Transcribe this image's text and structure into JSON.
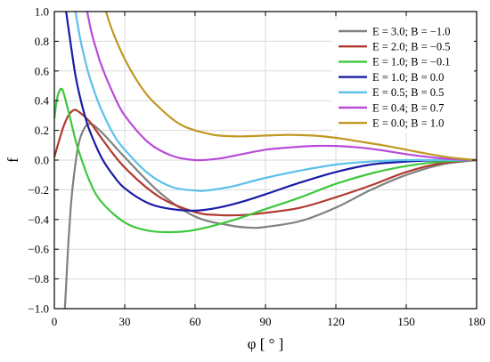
{
  "chart_data": {
    "type": "line",
    "title": "",
    "xlabel": "φ [ ° ]",
    "ylabel": "f",
    "xlim": [
      0,
      180
    ],
    "ylim": [
      -1.0,
      1.0
    ],
    "xticks": [
      0,
      30,
      60,
      90,
      120,
      150,
      180
    ],
    "xtick_labels": [
      "0",
      "30",
      "60",
      "90",
      "120",
      "150",
      "180"
    ],
    "yticks": [
      -1.0,
      -0.8,
      -0.6,
      -0.4,
      -0.2,
      0.0,
      0.2,
      0.4,
      0.6,
      0.8,
      1.0
    ],
    "ytick_labels": [
      "−1.0",
      "−0.8",
      "−0.6",
      "−0.4",
      "−0.2",
      "0.0",
      "0.2",
      "0.4",
      "0.6",
      "0.8",
      "1.0"
    ],
    "grid": true,
    "legend_position": "top-right",
    "series": [
      {
        "name": "E = 3.0; B = −1.0",
        "color": "#808080",
        "x": [
          4.5,
          5,
          6,
          7,
          8,
          10,
          12,
          15,
          20,
          30,
          45,
          60,
          75,
          84,
          90,
          105,
          120,
          135,
          150,
          165,
          180
        ],
        "y": [
          -1.0,
          -0.85,
          -0.55,
          -0.32,
          -0.15,
          0.08,
          0.19,
          0.245,
          0.19,
          0.02,
          -0.22,
          -0.38,
          -0.44,
          -0.455,
          -0.45,
          -0.41,
          -0.32,
          -0.2,
          -0.1,
          -0.03,
          0.0
        ]
      },
      {
        "name": "E = 2.0; B = −0.5",
        "color": "#b03a2e",
        "x": [
          0,
          2,
          4,
          6,
          8,
          10,
          15,
          20,
          30,
          45,
          60,
          70,
          80,
          90,
          105,
          120,
          135,
          150,
          165,
          180
        ],
        "y": [
          0.02,
          0.13,
          0.23,
          0.3,
          0.335,
          0.33,
          0.26,
          0.15,
          -0.05,
          -0.25,
          -0.35,
          -0.37,
          -0.37,
          -0.355,
          -0.32,
          -0.25,
          -0.17,
          -0.08,
          -0.02,
          0.0
        ]
      },
      {
        "name": "E = 1.0; B = −0.1",
        "color": "#3cc83c",
        "x": [
          0,
          1,
          2,
          3,
          4,
          6,
          8,
          10,
          15,
          20,
          30,
          40,
          50,
          60,
          75,
          90,
          105,
          120,
          135,
          150,
          165,
          180
        ],
        "y": [
          0.28,
          0.4,
          0.46,
          0.48,
          0.45,
          0.33,
          0.2,
          0.08,
          -0.14,
          -0.28,
          -0.42,
          -0.475,
          -0.485,
          -0.47,
          -0.41,
          -0.33,
          -0.25,
          -0.16,
          -0.09,
          -0.04,
          -0.01,
          0.0
        ]
      },
      {
        "name": "E = 1.0; B =  0.0",
        "color": "#1a1aa6",
        "x": [
          5,
          7,
          9,
          11,
          13,
          15,
          20,
          25,
          30,
          40,
          50,
          60,
          70,
          80,
          90,
          105,
          120,
          135,
          150,
          165,
          180
        ],
        "y": [
          1.0,
          0.78,
          0.57,
          0.42,
          0.3,
          0.2,
          0.02,
          -0.1,
          -0.19,
          -0.29,
          -0.33,
          -0.34,
          -0.32,
          -0.28,
          -0.23,
          -0.15,
          -0.08,
          -0.03,
          -0.01,
          0.0,
          0.0
        ]
      },
      {
        "name": "E = 0.5; B =  0.5",
        "color": "#5bc0eb",
        "x": [
          9,
          11,
          13,
          15,
          18,
          20,
          25,
          30,
          40,
          50,
          60,
          65,
          75,
          90,
          105,
          120,
          135,
          150,
          165,
          180
        ],
        "y": [
          1.0,
          0.82,
          0.68,
          0.56,
          0.42,
          0.34,
          0.18,
          0.07,
          -0.09,
          -0.18,
          -0.205,
          -0.205,
          -0.18,
          -0.12,
          -0.07,
          -0.03,
          -0.01,
          0.0,
          0.0,
          0.0
        ]
      },
      {
        "name": "E = 0.4; B =  0.7",
        "color": "#b84bd8",
        "x": [
          14,
          16,
          18,
          20,
          25,
          30,
          40,
          50,
          60,
          70,
          80,
          90,
          100,
          110,
          120,
          130,
          140,
          150,
          160,
          170,
          180
        ],
        "y": [
          1.0,
          0.85,
          0.74,
          0.64,
          0.45,
          0.3,
          0.12,
          0.03,
          0.0,
          0.01,
          0.04,
          0.07,
          0.085,
          0.095,
          0.095,
          0.085,
          0.065,
          0.04,
          0.02,
          0.005,
          0.0
        ]
      },
      {
        "name": "E = 0.0; B =  1.0",
        "color": "#c09820",
        "x": [
          22,
          25,
          30,
          35,
          40,
          45,
          50,
          55,
          60,
          65,
          70,
          80,
          90,
          100,
          110,
          120,
          130,
          140,
          150,
          160,
          170,
          180
        ],
        "y": [
          1.0,
          0.86,
          0.68,
          0.54,
          0.43,
          0.35,
          0.28,
          0.23,
          0.2,
          0.18,
          0.165,
          0.16,
          0.165,
          0.17,
          0.165,
          0.15,
          0.125,
          0.1,
          0.07,
          0.04,
          0.015,
          0.0
        ]
      }
    ]
  }
}
